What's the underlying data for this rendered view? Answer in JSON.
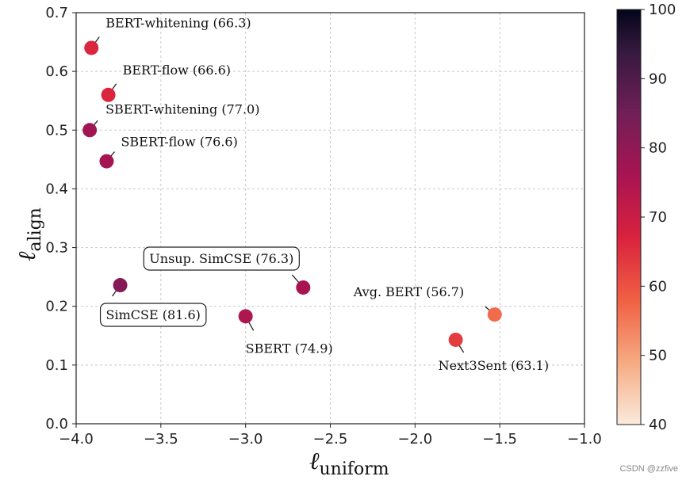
{
  "chart_data": {
    "type": "scatter",
    "xlabel": "ℓ",
    "xlabel_sub": "uniform",
    "ylabel": "ℓ",
    "ylabel_sub": "align",
    "xlim": [
      -4.0,
      -1.0
    ],
    "ylim": [
      0.0,
      0.7
    ],
    "xticks": [
      -4.0,
      -3.5,
      -3.0,
      -2.5,
      -2.0,
      -1.5,
      -1.0
    ],
    "xtick_labels": [
      "−4.0",
      "−3.5",
      "−3.0",
      "−2.5",
      "−2.0",
      "−1.5",
      "−1.0"
    ],
    "yticks": [
      0.0,
      0.1,
      0.2,
      0.3,
      0.4,
      0.5,
      0.6,
      0.7
    ],
    "ytick_labels": [
      "0.0",
      "0.1",
      "0.2",
      "0.3",
      "0.4",
      "0.5",
      "0.6",
      "0.7"
    ],
    "grid": true,
    "colorbar": {
      "range": [
        40,
        100
      ],
      "ticks": [
        40,
        50,
        60,
        70,
        80,
        90,
        100
      ],
      "tick_labels": [
        "40",
        "50",
        "60",
        "70",
        "80",
        "90",
        "100"
      ]
    },
    "points": [
      {
        "name": "BERT-whitening",
        "label": "BERT-whitening (66.3)",
        "x": -3.91,
        "y": 0.64,
        "score": 66.3,
        "boxed": false
      },
      {
        "name": "BERT-flow",
        "label": "BERT-flow (66.6)",
        "x": -3.81,
        "y": 0.56,
        "score": 66.6,
        "boxed": false
      },
      {
        "name": "SBERT-whitening",
        "label": "SBERT-whitening (77.0)",
        "x": -3.92,
        "y": 0.5,
        "score": 77.0,
        "boxed": false
      },
      {
        "name": "SBERT-flow",
        "label": "SBERT-flow (76.6)",
        "x": -3.82,
        "y": 0.447,
        "score": 76.6,
        "boxed": false
      },
      {
        "name": "Unsup. SimCSE",
        "label": "Unsup. SimCSE (76.3)",
        "x": -2.66,
        "y": 0.232,
        "score": 76.3,
        "boxed": true
      },
      {
        "name": "SimCSE",
        "label": "SimCSE (81.6)",
        "x": -3.74,
        "y": 0.236,
        "score": 81.6,
        "boxed": true
      },
      {
        "name": "SBERT",
        "label": "SBERT (74.9)",
        "x": -3.0,
        "y": 0.183,
        "score": 74.9,
        "boxed": false
      },
      {
        "name": "Avg. BERT",
        "label": "Avg. BERT (56.7)",
        "x": -1.53,
        "y": 0.186,
        "score": 56.7,
        "boxed": false
      },
      {
        "name": "Next3Sent",
        "label": "Next3Sent (63.1)",
        "x": -1.76,
        "y": 0.143,
        "score": 63.1,
        "boxed": false
      }
    ]
  },
  "watermark": "CSDN @zzfive"
}
